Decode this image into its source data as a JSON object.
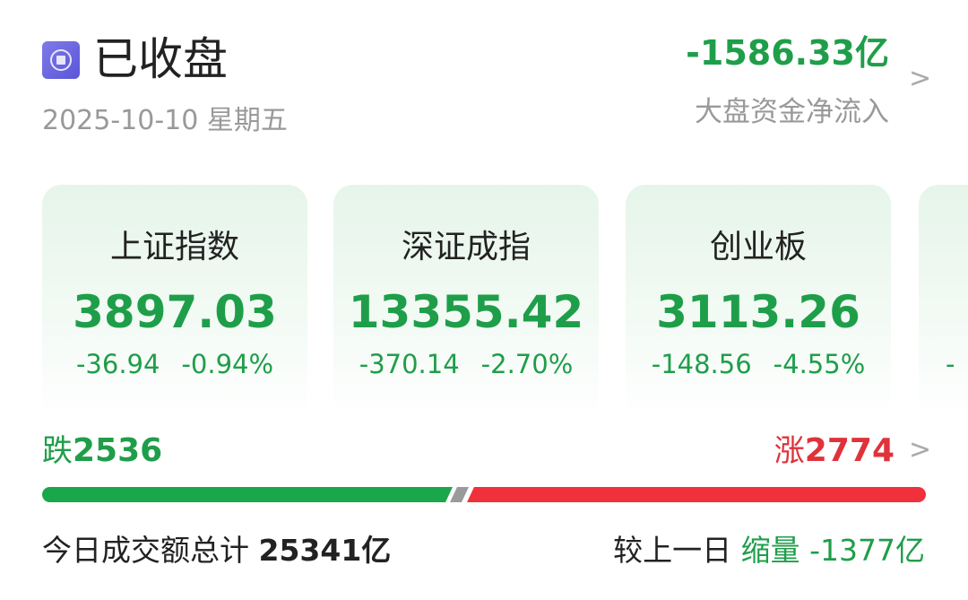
{
  "header": {
    "status_icon": "market-closed-icon",
    "status": "已收盘",
    "date": "2025-10-10 星期五",
    "net_flow_value": "-1586.33亿",
    "net_flow_label": "大盘资金净流入"
  },
  "indices": [
    {
      "name": "上证指数",
      "price": "3897.03",
      "change": "-36.94",
      "pct": "-0.94%"
    },
    {
      "name": "深证成指",
      "price": "13355.42",
      "change": "-370.14",
      "pct": "-2.70%"
    },
    {
      "name": "创业板",
      "price": "3113.26",
      "change": "-148.56",
      "pct": "-4.55%"
    }
  ],
  "breadth": {
    "down_label": "跌",
    "down_count": "2536",
    "up_label": "涨",
    "up_count": "2774",
    "colors": {
      "down": "#1aa64a",
      "flat": "#9a9a9a",
      "up": "#f0303a"
    }
  },
  "turnover": {
    "label": "今日成交额总计",
    "value": "25341亿",
    "compare_label": "较上一日",
    "compare_status": "缩量",
    "compare_value": "-1377亿"
  },
  "colors": {
    "fall": "#1f9e4a",
    "rise": "#e0323a"
  }
}
